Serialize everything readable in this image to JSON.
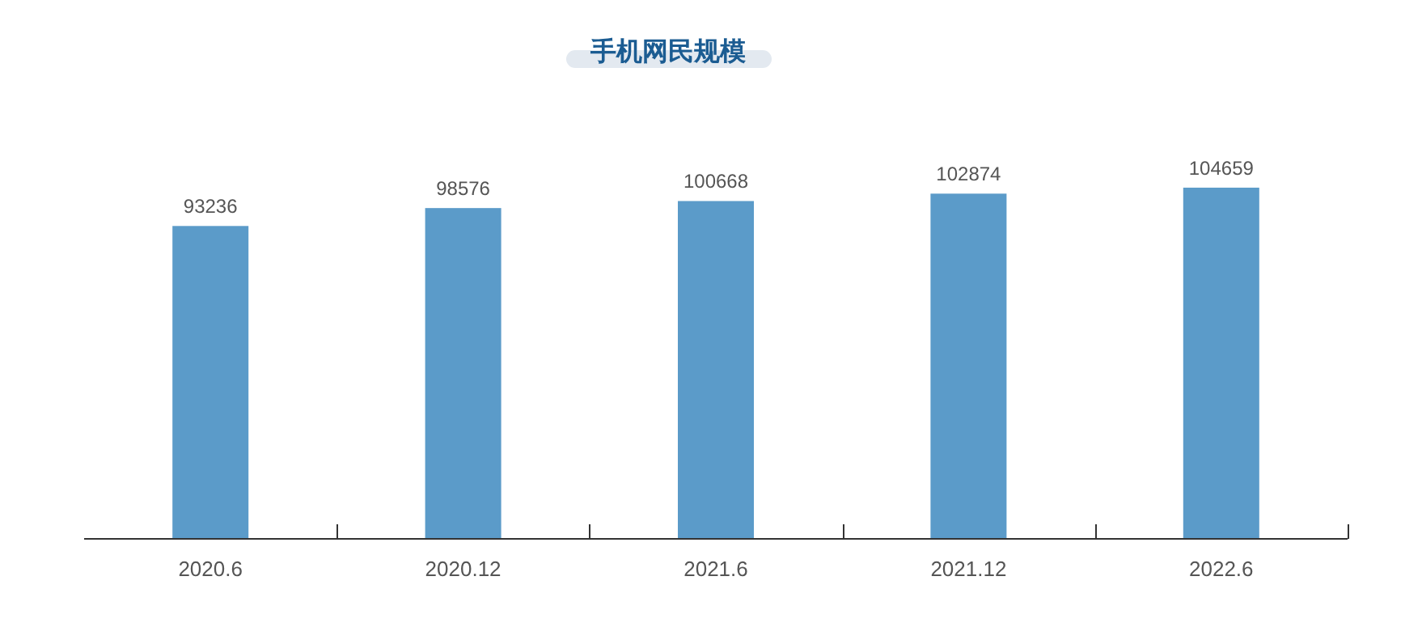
{
  "chart_data": {
    "type": "bar",
    "title": "手机网民规模",
    "categories": [
      "2020.6",
      "2020.12",
      "2021.6",
      "2021.12",
      "2022.6"
    ],
    "values": [
      93236,
      98576,
      100668,
      102874,
      104659
    ],
    "color": "#5b9bc9",
    "data_labels": true
  }
}
